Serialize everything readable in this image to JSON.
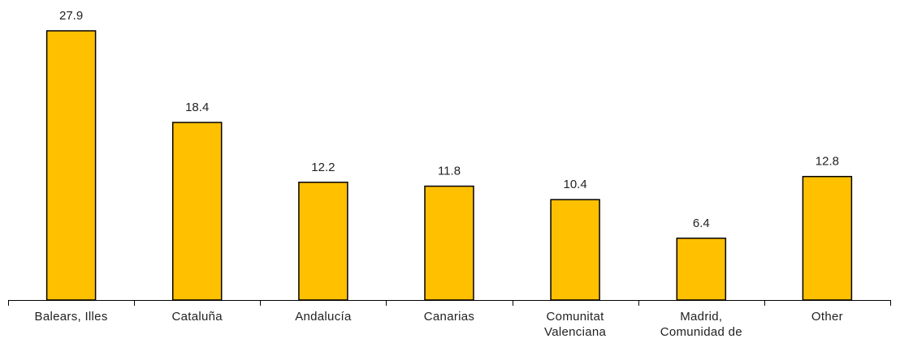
{
  "chart_data": {
    "type": "bar",
    "categories": [
      [
        "Balears, Illes"
      ],
      [
        "Cataluña"
      ],
      [
        "Andalucía"
      ],
      [
        "Canarias"
      ],
      [
        "Comunitat",
        "Valenciana"
      ],
      [
        "Madrid,",
        "Comunidad de"
      ],
      [
        "Other"
      ]
    ],
    "values": [
      27.9,
      18.4,
      12.2,
      11.8,
      10.4,
      6.4,
      12.8
    ],
    "data_labels": [
      "27.9",
      "18.4",
      "12.2",
      "11.8",
      "10.4",
      "6.4",
      "12.8"
    ],
    "title": "",
    "xlabel": "",
    "ylabel": "",
    "ylim": [
      0,
      30
    ],
    "grid": false,
    "legend": "none",
    "bar_color": "#FFC000",
    "bar_edge_color": "#000000"
  }
}
